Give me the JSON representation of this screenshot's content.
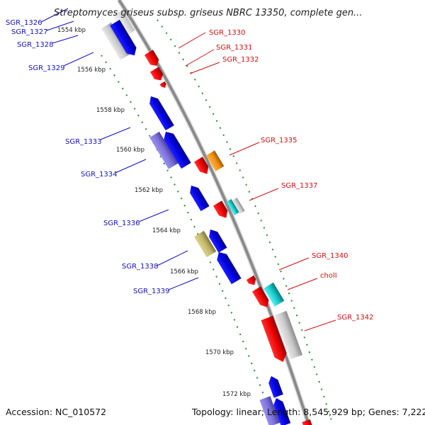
{
  "title": "Streptomyces griseus subsp. griseus NBRC 13350, complete gen...",
  "footer": {
    "accession": "Accession: NC_010572",
    "summary": "Topology: linear; Length: 8,545,929 bp; Genes: 7,222"
  },
  "colors": {
    "backbone": "#8a8a8a",
    "guide_lines": "#2a8a2a",
    "left_label": "#1010c0",
    "right_label": "#d01010"
  },
  "kbp_marks": [
    "1554 kbp",
    "1556 kbp",
    "1558 kbp",
    "1560 kbp",
    "1562 kbp",
    "1564 kbp",
    "1566 kbp",
    "1568 kbp",
    "1570 kbp",
    "1572 kbp"
  ],
  "left_genes": [
    "SGR_1326",
    "SGR_1327",
    "SGR_1328",
    "SGR_1329",
    "SGR_1333",
    "SGR_1334",
    "SGR_1336",
    "SGR_1338",
    "SGR_1339"
  ],
  "right_genes": [
    "SGR_1330",
    "SGR_1331",
    "SGR_1332",
    "SGR_1335",
    "SGR_1337",
    "SGR_1340",
    "cholI",
    "SGR_1342"
  ]
}
